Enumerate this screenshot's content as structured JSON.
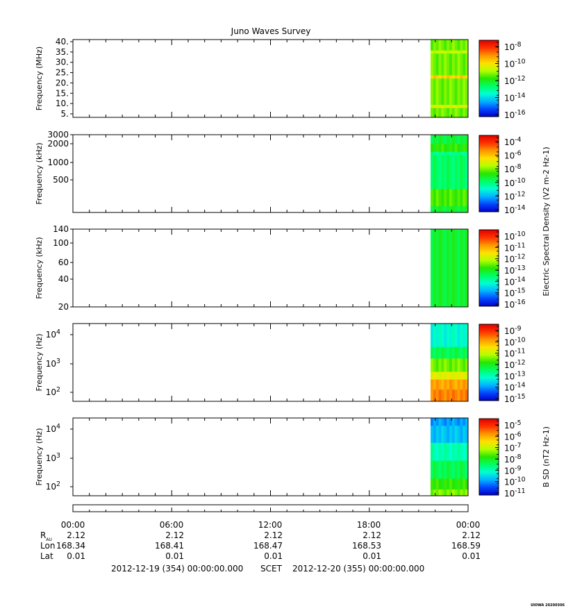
{
  "title": "Juno Waves Survey",
  "footer_stamp": "UIOWA 20200306",
  "colors": {
    "spectrum": [
      "#0000c8",
      "#0046ff",
      "#00b4ff",
      "#00ffd2",
      "#00ff64",
      "#28e600",
      "#b4ff00",
      "#ffe100",
      "#ff9600",
      "#ff3200",
      "#e10000"
    ]
  },
  "chart_data": [
    {
      "type": "heatmap",
      "panel": "hfr-high",
      "ylabel": "Frequency (MHz)",
      "yticks": [
        "40.",
        "35.",
        "30.",
        "25.",
        "20.",
        "15.",
        "10.",
        "5."
      ],
      "yrange": [
        3,
        41
      ],
      "colorbar_labels": [
        {
          "base": "10",
          "exp": "-8"
        },
        {
          "base": "10",
          "exp": "-10"
        },
        {
          "base": "10",
          "exp": "-12"
        },
        {
          "base": "10",
          "exp": "-14"
        },
        {
          "base": "10",
          "exp": "-16"
        }
      ],
      "colorbar_label": "",
      "data_start_fraction": 0.905,
      "bands": [
        {
          "from": 0.0,
          "to": 0.14,
          "level": 0.55
        },
        {
          "from": 0.14,
          "to": 0.18,
          "level": 0.62
        },
        {
          "from": 0.18,
          "to": 0.46,
          "level": 0.55
        },
        {
          "from": 0.46,
          "to": 0.5,
          "level": 0.72
        },
        {
          "from": 0.5,
          "to": 0.84,
          "level": 0.55
        },
        {
          "from": 0.84,
          "to": 0.88,
          "level": 0.65
        },
        {
          "from": 0.88,
          "to": 1.0,
          "level": 0.55
        }
      ]
    },
    {
      "type": "heatmap",
      "panel": "hfr-low",
      "ylabel": "Frequency (kHz)",
      "yticks": [
        "3000",
        "2000",
        "1000",
        "500"
      ],
      "colorbar_labels": [
        {
          "base": "10",
          "exp": "-4"
        },
        {
          "base": "10",
          "exp": "-6"
        },
        {
          "base": "10",
          "exp": "-8"
        },
        {
          "base": "10",
          "exp": "-10"
        },
        {
          "base": "10",
          "exp": "-12"
        },
        {
          "base": "10",
          "exp": "-14"
        }
      ],
      "colorbar_label": "Electric Spectral Density (V2 m-2 Hz-1)",
      "data_start_fraction": 0.905,
      "bands": [
        {
          "from": 0.0,
          "to": 0.12,
          "level": 0.44
        },
        {
          "from": 0.12,
          "to": 0.22,
          "level": 0.5
        },
        {
          "from": 0.22,
          "to": 0.26,
          "level": 0.36
        },
        {
          "from": 0.26,
          "to": 0.7,
          "level": 0.4
        },
        {
          "from": 0.7,
          "to": 0.92,
          "level": 0.52
        },
        {
          "from": 0.92,
          "to": 1.0,
          "level": 0.45
        }
      ]
    },
    {
      "type": "heatmap",
      "panel": "lfr-high",
      "ylabel": "Frequency (kHz)",
      "yticks": [
        "140",
        "100",
        "60",
        "40",
        "20"
      ],
      "colorbar_labels": [
        {
          "base": "10",
          "exp": "-10"
        },
        {
          "base": "10",
          "exp": "-11"
        },
        {
          "base": "10",
          "exp": "-12"
        },
        {
          "base": "10",
          "exp": "-13"
        },
        {
          "base": "10",
          "exp": "-14"
        },
        {
          "base": "10",
          "exp": "-15"
        },
        {
          "base": "10",
          "exp": "-16"
        }
      ],
      "colorbar_label": "",
      "data_start_fraction": 0.905,
      "bands": [
        {
          "from": 0.0,
          "to": 1.0,
          "level": 0.45
        }
      ]
    },
    {
      "type": "heatmap",
      "panel": "lfr-low",
      "ylabel": "Frequency (Hz)",
      "yticks": [
        {
          "base": "10",
          "exp": "4"
        },
        {
          "base": "10",
          "exp": "3"
        },
        {
          "base": "10",
          "exp": "2"
        }
      ],
      "colorbar_labels": [
        {
          "base": "10",
          "exp": "-9"
        },
        {
          "base": "10",
          "exp": "-10"
        },
        {
          "base": "10",
          "exp": "-11"
        },
        {
          "base": "10",
          "exp": "-12"
        },
        {
          "base": "10",
          "exp": "-13"
        },
        {
          "base": "10",
          "exp": "-14"
        },
        {
          "base": "10",
          "exp": "-15"
        }
      ],
      "colorbar_label": "",
      "data_start_fraction": 0.905,
      "bands": [
        {
          "from": 0.0,
          "to": 0.3,
          "level": 0.3
        },
        {
          "from": 0.3,
          "to": 0.45,
          "level": 0.42
        },
        {
          "from": 0.45,
          "to": 0.62,
          "level": 0.55
        },
        {
          "from": 0.62,
          "to": 0.72,
          "level": 0.66
        },
        {
          "from": 0.72,
          "to": 0.85,
          "level": 0.78
        },
        {
          "from": 0.85,
          "to": 1.0,
          "level": 0.82
        }
      ]
    },
    {
      "type": "heatmap",
      "panel": "magnetic",
      "ylabel": "Frequency (Hz)",
      "yticks": [
        {
          "base": "10",
          "exp": "4"
        },
        {
          "base": "10",
          "exp": "3"
        },
        {
          "base": "10",
          "exp": "2"
        }
      ],
      "colorbar_labels": [
        {
          "base": "10",
          "exp": "-5"
        },
        {
          "base": "10",
          "exp": "-6"
        },
        {
          "base": "10",
          "exp": "-7"
        },
        {
          "base": "10",
          "exp": "-8"
        },
        {
          "base": "10",
          "exp": "-9"
        },
        {
          "base": "10",
          "exp": "-10"
        },
        {
          "base": "10",
          "exp": "-11"
        }
      ],
      "colorbar_label": "B SD (nT2 Hz-1)",
      "data_start_fraction": 0.905,
      "bands": [
        {
          "from": 0.0,
          "to": 0.1,
          "level": 0.18
        },
        {
          "from": 0.1,
          "to": 0.32,
          "level": 0.22
        },
        {
          "from": 0.32,
          "to": 0.55,
          "level": 0.33
        },
        {
          "from": 0.55,
          "to": 0.78,
          "level": 0.42
        },
        {
          "from": 0.78,
          "to": 0.92,
          "level": 0.5
        },
        {
          "from": 0.92,
          "to": 1.0,
          "level": 0.56
        }
      ]
    }
  ],
  "time_axis": {
    "ticks": [
      "00:00",
      "06:00",
      "12:00",
      "18:00",
      "00:00"
    ],
    "rows": [
      {
        "label": "R",
        "label_sub": "AU",
        "values": [
          "2.12",
          "2.12",
          "2.12",
          "2.12",
          "2.12"
        ]
      },
      {
        "label": "Lon",
        "label_sub": "",
        "values": [
          "168.34",
          "168.41",
          "168.47",
          "168.53",
          "168.59"
        ]
      },
      {
        "label": "Lat",
        "label_sub": "",
        "values": [
          "0.01",
          "0.01",
          "0.01",
          "0.01",
          "0.01"
        ]
      }
    ],
    "range_start": "2012-12-19 (354) 00:00:00.000",
    "scet_label": "SCET",
    "range_end": "2012-12-20 (355) 00:00:00.000"
  }
}
